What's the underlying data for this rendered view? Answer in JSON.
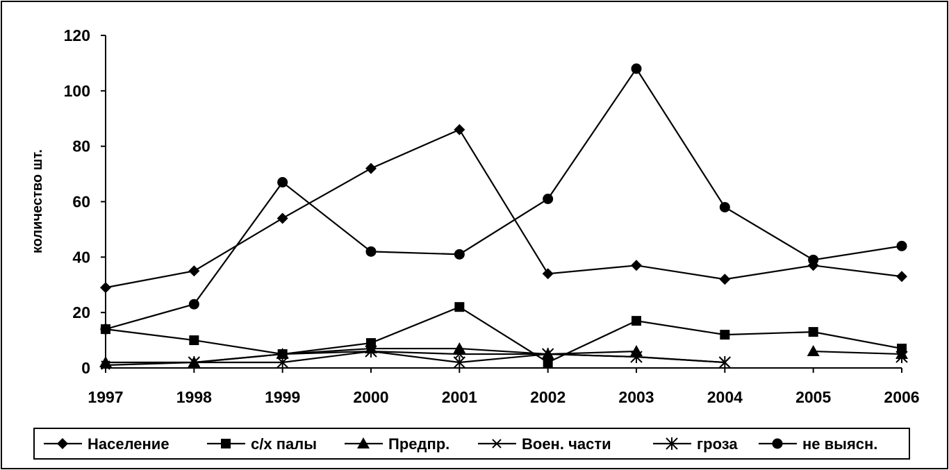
{
  "chart_data": {
    "type": "line",
    "title": "",
    "xlabel": "",
    "ylabel": "количество шт.",
    "x": [
      "1997",
      "1998",
      "1999",
      "2000",
      "2001",
      "2002",
      "2003",
      "2004",
      "2005",
      "2006"
    ],
    "ylim": [
      0,
      120
    ],
    "yticks": [
      "0",
      "20",
      "40",
      "60",
      "80",
      "100",
      "120"
    ],
    "grid": false,
    "legend_position": "bottom",
    "series": [
      {
        "name": "Население",
        "marker": "diamond",
        "values": [
          29,
          35,
          54,
          72,
          86,
          34,
          37,
          32,
          37,
          33
        ]
      },
      {
        "name": "с/х палы",
        "marker": "square",
        "values": [
          14,
          10,
          5,
          9,
          22,
          2,
          17,
          12,
          13,
          7
        ]
      },
      {
        "name": "Предпр.",
        "marker": "triangle",
        "values": [
          2,
          2,
          5,
          7,
          7,
          5,
          6,
          null,
          6,
          5
        ]
      },
      {
        "name": "Воен. части",
        "marker": "x",
        "values": [
          1,
          2,
          5,
          6,
          5,
          5,
          4,
          2,
          null,
          4
        ]
      },
      {
        "name": "гроза",
        "marker": "asterisk",
        "values": [
          null,
          2,
          2,
          6,
          2,
          5,
          4,
          2,
          null,
          4
        ]
      },
      {
        "name": "не выясн.",
        "marker": "circle",
        "values": [
          14,
          23,
          67,
          42,
          41,
          61,
          108,
          58,
          39,
          44
        ]
      }
    ]
  }
}
